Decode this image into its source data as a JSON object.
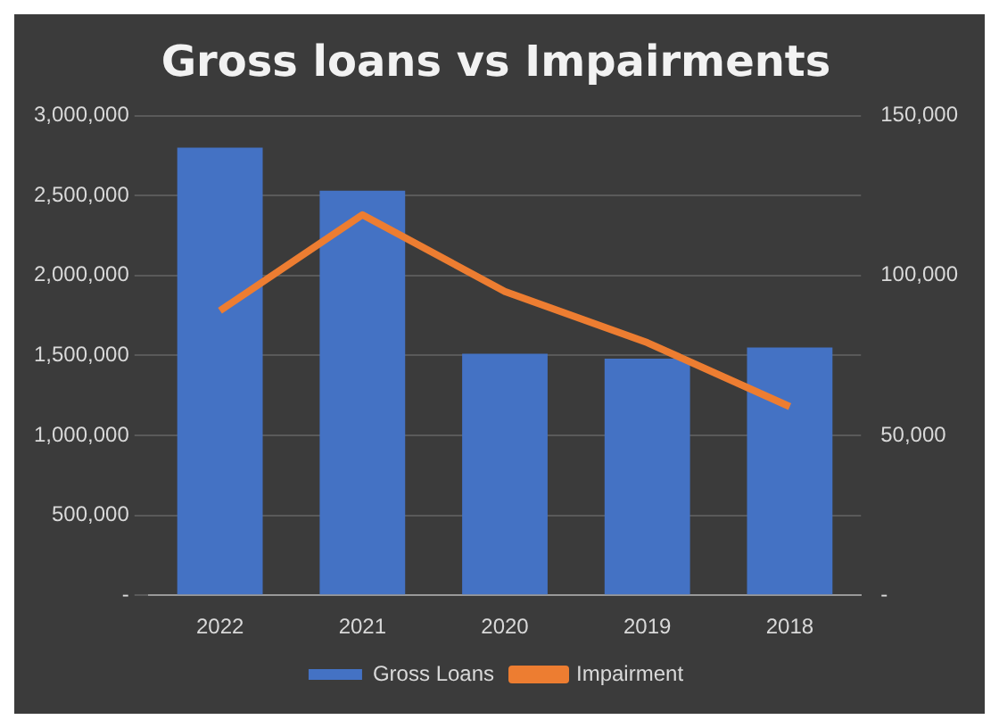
{
  "chart_data": {
    "type": "bar",
    "title": "Gross loans vs Impairments",
    "categories": [
      "2022",
      "2021",
      "2020",
      "2019",
      "2018"
    ],
    "series": [
      {
        "name": "Gross Loans",
        "color": "#4472c4",
        "values": [
          2800000,
          2530000,
          1510000,
          1480000,
          1550000
        ]
      },
      {
        "name": "Impairment",
        "type": "line",
        "axis": "y2",
        "color": "#ed7d31",
        "values": [
          89000,
          119000,
          95000,
          79000,
          59000
        ]
      }
    ],
    "ylim": [
      0,
      3000000
    ],
    "yticks": [
      {
        "value": 0,
        "label": "-"
      },
      {
        "value": 500000,
        "label": "500,000"
      },
      {
        "value": 1000000,
        "label": "1,000,000"
      },
      {
        "value": 1500000,
        "label": "1,500,000"
      },
      {
        "value": 2000000,
        "label": "2,000,000"
      },
      {
        "value": 2500000,
        "label": "2,500,000"
      },
      {
        "value": 3000000,
        "label": "3,000,000"
      }
    ],
    "y2lim": [
      0,
      150000
    ],
    "y2ticks": [
      {
        "value": 0,
        "label": "-"
      },
      {
        "value": 50000,
        "label": "50,000"
      },
      {
        "value": 100000,
        "label": "100,000"
      },
      {
        "value": 150000,
        "label": "150,000"
      }
    ],
    "grid": "y",
    "legend": "bottom",
    "marker": "none"
  }
}
